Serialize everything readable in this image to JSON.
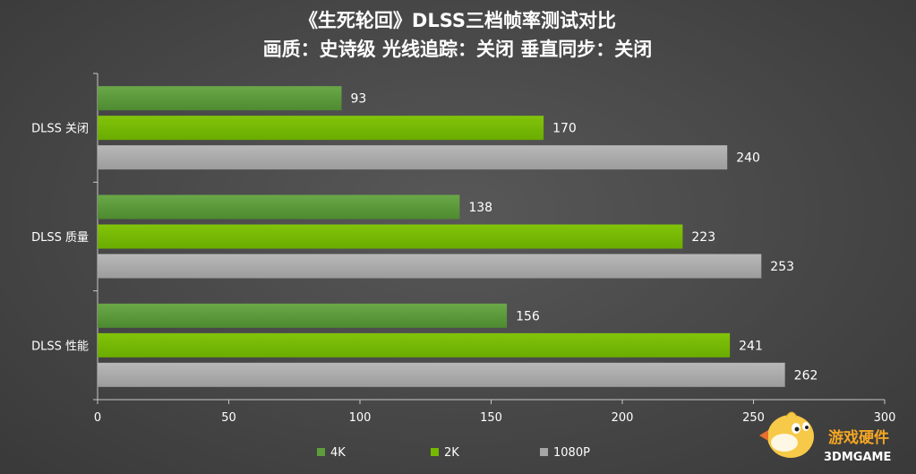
{
  "chart_data": {
    "type": "bar",
    "orientation": "horizontal",
    "title_lines": [
      "《生死轮回》DLSS三档帧率测试对比",
      "画质：史诗级 光线追踪：关闭  垂直同步：关闭"
    ],
    "categories": [
      "DLSS 关闭",
      "DLSS 质量",
      "DLSS 性能"
    ],
    "series": [
      {
        "name": "4K",
        "color": "#5e9c3c",
        "values": [
          93,
          138,
          156
        ]
      },
      {
        "name": "2K",
        "color": "#76b900",
        "values": [
          170,
          223,
          241
        ]
      },
      {
        "name": "1080P",
        "color": "#a6a6a6",
        "values": [
          240,
          253,
          262
        ]
      }
    ],
    "xlim": [
      0,
      300
    ],
    "xticks": [
      0,
      50,
      100,
      150,
      200,
      250,
      300
    ],
    "legend_position": "bottom",
    "grid": false
  },
  "watermark": {
    "text_cn": "游戏硬件",
    "text_en": "3DMGAME"
  }
}
